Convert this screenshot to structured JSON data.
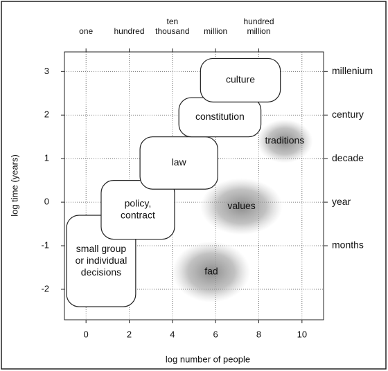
{
  "chart_data": {
    "type": "region",
    "xlabel": "log number of people",
    "ylabel": "log time (years)",
    "xlim": [
      -1,
      11
    ],
    "ylim": [
      -2.7,
      3.45
    ],
    "xticks": [
      0,
      2,
      4,
      6,
      8,
      10
    ],
    "yticks": [
      -2,
      -1,
      0,
      1,
      2,
      3
    ],
    "grid": true,
    "x2ticks": [
      {
        "value": 0,
        "label": [
          "one"
        ]
      },
      {
        "value": 2,
        "label": [
          "hundred"
        ]
      },
      {
        "value": 4,
        "label": [
          "ten",
          "thousand"
        ]
      },
      {
        "value": 6,
        "label": [
          "million"
        ]
      },
      {
        "value": 8,
        "label": [
          "hundred",
          "million"
        ]
      }
    ],
    "y2ticks": [
      {
        "value": 3,
        "label": "millenium"
      },
      {
        "value": 2,
        "label": "century"
      },
      {
        "value": 1,
        "label": "decade"
      },
      {
        "value": 0,
        "label": "year"
      },
      {
        "value": -1,
        "label": "months"
      }
    ],
    "regions": [
      {
        "label": [
          "small group",
          "or individual",
          "decisions"
        ],
        "style": "box",
        "x": [
          -0.9,
          2.3
        ],
        "y": [
          -2.4,
          -0.3
        ]
      },
      {
        "label": [
          "policy,",
          "contract"
        ],
        "style": "box",
        "x": [
          0.7,
          4.1
        ],
        "y": [
          -0.85,
          0.5
        ]
      },
      {
        "label": [
          "law"
        ],
        "style": "box",
        "x": [
          2.5,
          6.1
        ],
        "y": [
          0.3,
          1.5
        ]
      },
      {
        "label": [
          "constitution"
        ],
        "style": "box",
        "x": [
          4.3,
          8.1
        ],
        "y": [
          1.5,
          2.4
        ]
      },
      {
        "label": [
          "culture"
        ],
        "style": "box",
        "x": [
          5.3,
          9.0
        ],
        "y": [
          2.3,
          3.3
        ]
      },
      {
        "label": [
          "traditions"
        ],
        "style": "blur",
        "x": [
          7.9,
          10.5
        ],
        "y": [
          0.9,
          1.9
        ]
      },
      {
        "label": [
          "values"
        ],
        "style": "blur",
        "x": [
          5.3,
          9.1
        ],
        "y": [
          -0.75,
          0.55
        ]
      },
      {
        "label": [
          "fad"
        ],
        "style": "blur",
        "x": [
          4.0,
          7.6
        ],
        "y": [
          -2.3,
          -0.9
        ]
      }
    ]
  }
}
